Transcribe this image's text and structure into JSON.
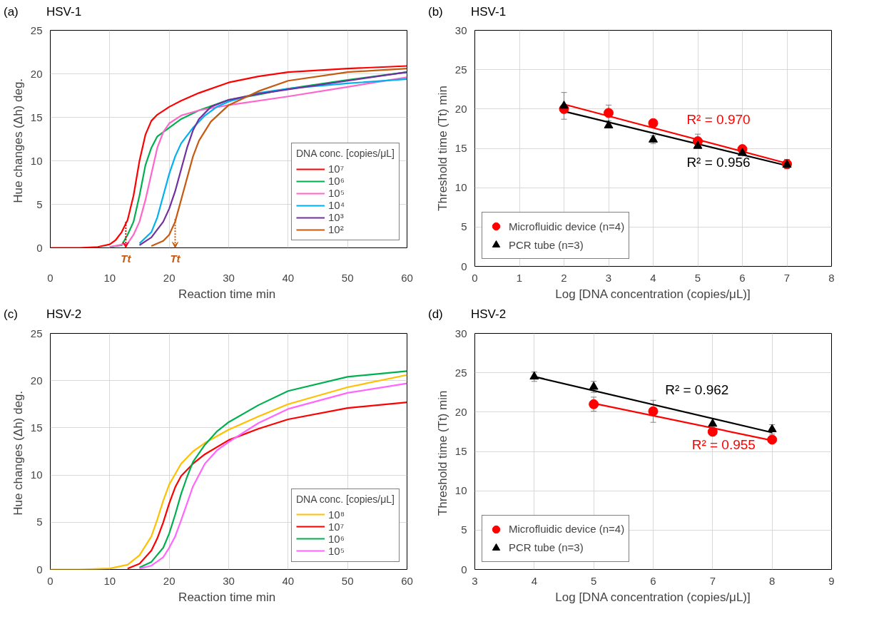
{
  "chart_data": [
    {
      "type": "line",
      "title": "(a)",
      "subtitle": "HSV-1",
      "xlabel": "Reaction time  min",
      "ylabel": "Hue changes (Δh)  deg.",
      "legend_title": "DNA conc. [copies/μL]",
      "legend": "bottom right",
      "grid": true,
      "xlim": [
        0,
        60
      ],
      "xticks": [
        0,
        10,
        20,
        30,
        40,
        50,
        60
      ],
      "ylim": [
        0,
        25
      ],
      "yticks": [
        0,
        5,
        10,
        15,
        20,
        25
      ],
      "series": [
        {
          "name": "10⁷",
          "color": "#ff0000",
          "x": [
            0,
            5,
            8,
            10,
            11,
            12,
            13,
            14,
            15,
            16,
            17,
            18,
            20,
            22,
            25,
            30,
            35,
            40,
            50,
            60
          ],
          "values": [
            0,
            0,
            0.1,
            0.4,
            0.9,
            1.8,
            3.2,
            6,
            10,
            13,
            14.6,
            15.3,
            16.2,
            16.9,
            17.8,
            19,
            19.7,
            20.2,
            20.6,
            20.9
          ]
        },
        {
          "name": "10⁶",
          "color": "#00b050",
          "x": [
            10,
            12,
            13,
            14,
            15,
            16,
            17,
            18,
            20,
            22,
            25,
            30,
            35,
            40,
            50,
            60
          ],
          "values": [
            0.1,
            0.3,
            1.5,
            3,
            6,
            9.5,
            11.5,
            12.8,
            13.8,
            14.8,
            15.8,
            17,
            17.6,
            18.3,
            19.3,
            20.2
          ]
        },
        {
          "name": "10⁵",
          "color": "#ff66cc",
          "x": [
            10,
            13,
            14,
            15,
            16,
            17,
            18,
            19,
            20,
            22,
            25,
            30,
            40,
            50,
            60
          ],
          "values": [
            0.1,
            0.5,
            1.5,
            3,
            5.5,
            8.5,
            11.5,
            13.3,
            14.3,
            15.2,
            15.8,
            16.4,
            17.4,
            18.5,
            19.6
          ]
        },
        {
          "name": "10⁴",
          "color": "#00b0f0",
          "x": [
            15,
            17,
            18,
            19,
            20,
            21,
            22,
            24,
            26,
            28,
            30,
            35,
            40,
            50,
            60
          ],
          "values": [
            0.5,
            1.8,
            3.5,
            6,
            8.5,
            10.5,
            12,
            13.8,
            15.2,
            16.2,
            16.8,
            17.8,
            18.3,
            18.9,
            19.4
          ]
        },
        {
          "name": "10³",
          "color": "#7030a0",
          "x": [
            15,
            17,
            19,
            20,
            21,
            22,
            23,
            24,
            25,
            27,
            30,
            35,
            40,
            50,
            60
          ],
          "values": [
            0.3,
            1.2,
            3,
            4.5,
            6.5,
            9,
            11.5,
            13.5,
            14.8,
            16.2,
            17,
            17.7,
            18.2,
            19.2,
            20.2
          ]
        },
        {
          "name": "10²",
          "color": "#c55a11",
          "x": [
            17,
            19,
            20,
            21,
            22,
            23,
            24,
            25,
            27,
            30,
            35,
            40,
            50,
            60
          ],
          "values": [
            0.2,
            0.8,
            1.5,
            3,
            5.5,
            8,
            10.5,
            12.3,
            14.5,
            16.4,
            18,
            19.2,
            20.2,
            20.6
          ]
        }
      ],
      "annotations": [
        {
          "text": "Tt",
          "x": 12.7,
          "y": 3
        },
        {
          "text": "Tt",
          "x": 21,
          "y": 3.3
        }
      ]
    },
    {
      "type": "scatter",
      "title": "(b)",
      "subtitle": "HSV-1",
      "xlabel": "Log [DNA concentration (copies/μL)]",
      "ylabel": "Threshold time (Tt) min",
      "legend": "bottom left",
      "grid": true,
      "xlim": [
        0,
        8
      ],
      "xticks": [
        0,
        1,
        2,
        3,
        4,
        5,
        6,
        7,
        8
      ],
      "ylim": [
        0,
        30
      ],
      "yticks": [
        0,
        5,
        10,
        15,
        20,
        25,
        30
      ],
      "series": [
        {
          "type": "line",
          "name": "R² = 0.956",
          "color": "#000000",
          "x": [
            2,
            7
          ],
          "values": [
            19.7,
            12.8
          ]
        },
        {
          "type": "line",
          "name": "R² = 0.970",
          "color": "#ff0000",
          "x": [
            2,
            7
          ],
          "values": [
            20.6,
            13.1
          ]
        },
        {
          "name": "Microfluidic device (n=4)",
          "color": "#ff0000",
          "marker": "circle",
          "x": [
            2,
            3,
            4,
            5,
            6,
            7
          ],
          "values": [
            20.0,
            19.5,
            18.2,
            15.9,
            14.9,
            13.0
          ],
          "errors": [
            null,
            1.0,
            null,
            0.9,
            null,
            0.6
          ]
        },
        {
          "name": "PCR tube (n=3)",
          "color": "#000000",
          "marker": "triangle",
          "x": [
            2,
            3,
            4,
            5,
            6,
            7
          ],
          "values": [
            20.4,
            17.9,
            16.1,
            15.3,
            14.4,
            12.9
          ],
          "errors": [
            1.7,
            null,
            0.5,
            null,
            null,
            null
          ]
        }
      ]
    },
    {
      "type": "line",
      "title": "(c)",
      "subtitle": "HSV-2",
      "xlabel": "Reaction time  min",
      "ylabel": "Hue changes (Δh)  deg.",
      "legend_title": "DNA conc. [copies/μL]",
      "legend": "bottom right",
      "grid": true,
      "xlim": [
        0,
        60
      ],
      "xticks": [
        0,
        10,
        20,
        30,
        40,
        50,
        60
      ],
      "ylim": [
        0,
        25
      ],
      "yticks": [
        0,
        5,
        10,
        15,
        20,
        25
      ],
      "series": [
        {
          "name": "10⁸",
          "color": "#ffc000",
          "x": [
            0,
            5,
            10,
            13,
            15,
            17,
            18,
            19,
            20,
            22,
            24,
            26,
            30,
            35,
            40,
            50,
            60
          ],
          "values": [
            0,
            0,
            0.1,
            0.5,
            1.5,
            3.5,
            5.3,
            7.3,
            9,
            11.2,
            12.5,
            13.4,
            14.8,
            16.2,
            17.5,
            19.3,
            20.6
          ]
        },
        {
          "name": "10⁷",
          "color": "#ff0000",
          "x": [
            13,
            15,
            17,
            18,
            19,
            20,
            21,
            22,
            24,
            26,
            30,
            35,
            40,
            50,
            60
          ],
          "values": [
            0.1,
            0.6,
            2,
            3.3,
            5,
            7,
            8.7,
            9.9,
            11.2,
            12.2,
            13.7,
            14.9,
            15.9,
            17.1,
            17.7
          ]
        },
        {
          "name": "10⁶",
          "color": "#00b050",
          "x": [
            15,
            17,
            19,
            20,
            21,
            22,
            23,
            24,
            26,
            28,
            30,
            35,
            40,
            50,
            60
          ],
          "values": [
            0.2,
            0.8,
            2.3,
            3.8,
            5.8,
            8,
            9.8,
            11.4,
            13.2,
            14.6,
            15.6,
            17.4,
            18.9,
            20.4,
            21.0
          ]
        },
        {
          "name": "10⁵",
          "color": "#ff66ff",
          "x": [
            15,
            17,
            19,
            20,
            21,
            22,
            23,
            24,
            26,
            28,
            30,
            35,
            40,
            50,
            60
          ],
          "values": [
            0.1,
            0.4,
            1.3,
            2.3,
            3.5,
            5.2,
            7,
            8.8,
            11.2,
            12.6,
            13.5,
            15.5,
            17,
            18.7,
            19.7
          ]
        }
      ]
    },
    {
      "type": "scatter",
      "title": "(d)",
      "subtitle": "HSV-2",
      "xlabel": "Log [DNA concentration (copies/μL)]",
      "ylabel": "Threshold time (Tt)  min",
      "legend": "bottom left",
      "grid": true,
      "xlim": [
        3,
        9
      ],
      "xticks": [
        3,
        4,
        5,
        6,
        7,
        8,
        9
      ],
      "ylim": [
        0,
        30
      ],
      "yticks": [
        0,
        5,
        10,
        15,
        20,
        25,
        30
      ],
      "series": [
        {
          "type": "line",
          "name": "R² = 0.962",
          "color": "#000000",
          "x": [
            4,
            8
          ],
          "values": [
            24.5,
            17.4
          ]
        },
        {
          "type": "line",
          "name": "R² = 0.955",
          "color": "#ff0000",
          "x": [
            5,
            8
          ],
          "values": [
            21.1,
            16.4
          ]
        },
        {
          "name": "Microfluidic device (n=4)",
          "color": "#ff0000",
          "marker": "circle",
          "x": [
            5,
            6,
            7,
            8
          ],
          "values": [
            21.0,
            20.1,
            17.5,
            16.5
          ],
          "errors": [
            0.9,
            1.4,
            null,
            null
          ]
        },
        {
          "name": "PCR tube (n=3)",
          "color": "#000000",
          "marker": "triangle",
          "x": [
            4,
            5,
            7,
            8
          ],
          "values": [
            24.5,
            23.2,
            18.5,
            17.8
          ],
          "errors": [
            0.6,
            0.7,
            null,
            0.6
          ]
        }
      ]
    }
  ]
}
